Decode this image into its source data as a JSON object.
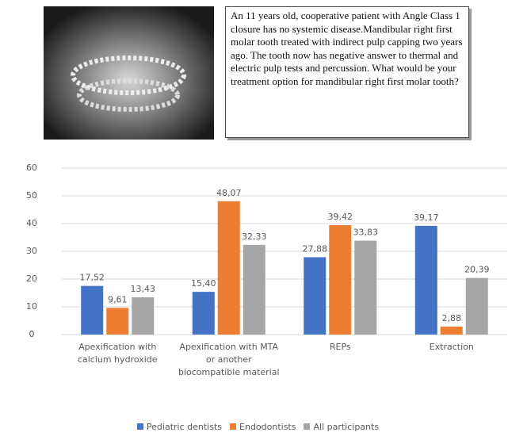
{
  "case_text": "An 11 years old, cooperative patient with Angle Class 1 closure has no systemic disease.Mandibular right first molar tooth treated with indirect pulp capping two years ago. The tooth now has negative answer to thermal and electric pulp tests and percussion. What would be your treatment option for mandibular right first molar tooth?",
  "chart_data": {
    "type": "bar",
    "categories": [
      "Apexification with calcium hydroxide",
      "Apexification with MTA or another biocompatible material",
      "REPs",
      "Extraction"
    ],
    "series": [
      {
        "name": "Pediatric dentists",
        "color": "#4472c4",
        "values": [
          17.52,
          15.4,
          27.88,
          39.17
        ],
        "value_labels": [
          "17,52",
          "15,40",
          "27,88",
          "39,17"
        ]
      },
      {
        "name": "Endodontists",
        "color": "#ed7d31",
        "values": [
          9.61,
          48.07,
          39.42,
          2.88
        ],
        "value_labels": [
          "9,61",
          "48,07",
          "39,42",
          "2,88"
        ]
      },
      {
        "name": "All participants",
        "color": "#a5a5a5",
        "values": [
          13.43,
          32.33,
          33.83,
          20.39
        ],
        "value_labels": [
          "13,43",
          "32,33",
          "33,83",
          "20,39"
        ]
      }
    ],
    "ylim": [
      0,
      60
    ],
    "yticks": [
      0,
      10,
      20,
      30,
      40,
      50,
      60
    ],
    "grid": true,
    "legend": "bottom"
  }
}
